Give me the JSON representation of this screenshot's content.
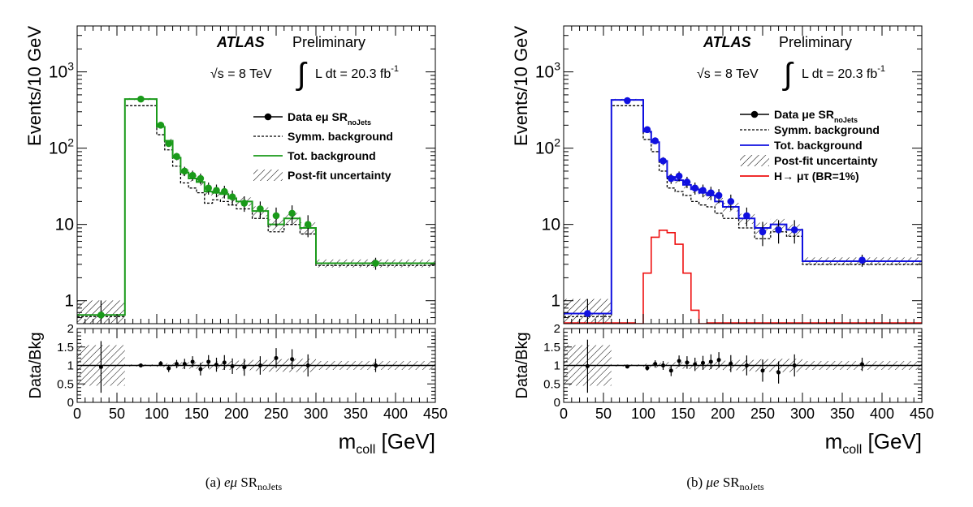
{
  "chart_data": [
    {
      "type": "histogram",
      "panel_caption": {
        "letter": "(a)",
        "channel": "eμ",
        "sr": "SR",
        "sub": "noJets"
      },
      "atlas_label": "ATLAS",
      "preliminary": "Preliminary",
      "energy": {
        "sqrt": "√s = 8 TeV"
      },
      "lumi": {
        "integral": "∫",
        "text": "L dt = 20.3 fb",
        "exp": "-1"
      },
      "upper": {
        "ylabel": "Events/10 GeV",
        "yscale": "log",
        "ylim": [
          0.5,
          4000
        ],
        "yticks": [
          {
            "label": "1",
            "value": 1
          },
          {
            "label": "10",
            "value": 10
          },
          {
            "label": "10",
            "sup": "2",
            "value": 100
          },
          {
            "label": "10",
            "sup": "3",
            "value": 1000
          }
        ]
      },
      "ratio": {
        "ylabel": "Data/Bkg",
        "ylim": [
          0,
          2
        ],
        "yticks": [
          "0",
          "0.5",
          "1",
          "1.5",
          "2"
        ]
      },
      "xaxis": {
        "label": "m",
        "sub": "coll",
        "unit": "[GeV]",
        "xlim": [
          0,
          450
        ],
        "ticks": [
          "0",
          "50",
          "100",
          "150",
          "200",
          "250",
          "300",
          "350",
          "400",
          "450"
        ]
      },
      "legend": [
        {
          "kind": "data",
          "label": "Data eμ SR",
          "sub": "noJets"
        },
        {
          "kind": "symm",
          "label": "Symm. background"
        },
        {
          "kind": "tot",
          "label": "Tot. background"
        },
        {
          "kind": "unc",
          "label": "Post-fit uncertainty"
        }
      ],
      "colors": {
        "total": "#1a9a1a",
        "data": "#1a9a1a",
        "symm": "#000000",
        "signal": "#ee1111"
      },
      "bins": [
        0,
        60,
        100,
        110,
        120,
        130,
        140,
        150,
        160,
        170,
        180,
        190,
        200,
        220,
        240,
        260,
        280,
        300,
        450
      ],
      "total_bkg": [
        0.65,
        440,
        190,
        125,
        75,
        48,
        40,
        36,
        27,
        26,
        25,
        22,
        20,
        15,
        10,
        12,
        9,
        3.1
      ],
      "symm_bkg": [
        0.62,
        360,
        150,
        95,
        58,
        35,
        30,
        26,
        19,
        21,
        20,
        18,
        16,
        12,
        8,
        10,
        7.5,
        2.9
      ],
      "unc_rel": [
        0.55,
        0.03,
        0.05,
        0.06,
        0.07,
        0.09,
        0.09,
        0.1,
        0.11,
        0.11,
        0.12,
        0.12,
        0.13,
        0.15,
        0.17,
        0.18,
        0.18,
        0.12
      ],
      "data": {
        "x": [
          30,
          80,
          105,
          115,
          125,
          135,
          145,
          155,
          165,
          175,
          185,
          195,
          210,
          230,
          250,
          270,
          290,
          375
        ],
        "y": [
          0.65,
          440,
          200,
          115,
          78,
          50,
          44,
          40,
          30,
          28,
          27,
          23,
          19,
          16,
          13,
          14,
          10,
          3.1
        ],
        "err": [
          0.55,
          0.05,
          0.07,
          0.09,
          0.11,
          0.14,
          0.15,
          0.16,
          0.18,
          0.19,
          0.19,
          0.21,
          0.23,
          0.25,
          0.28,
          0.27,
          0.32,
          0.18
        ]
      },
      "ratio_points": {
        "x": [
          30,
          80,
          105,
          115,
          125,
          135,
          145,
          155,
          165,
          175,
          185,
          195,
          210,
          230,
          250,
          270,
          290,
          375
        ],
        "y": [
          0.96,
          1.0,
          1.05,
          0.92,
          1.04,
          1.04,
          1.1,
          0.9,
          1.1,
          1.02,
          1.08,
          0.98,
          0.95,
          1.0,
          1.2,
          1.17,
          1.0,
          1.0
        ],
        "err": [
          0.7,
          0.04,
          0.07,
          0.1,
          0.11,
          0.14,
          0.15,
          0.17,
          0.18,
          0.19,
          0.2,
          0.21,
          0.23,
          0.25,
          0.27,
          0.27,
          0.3,
          0.18
        ]
      }
    },
    {
      "type": "histogram",
      "panel_caption": {
        "letter": "(b)",
        "channel": "μe",
        "sr": "SR",
        "sub": "noJets"
      },
      "atlas_label": "ATLAS",
      "preliminary": "Preliminary",
      "energy": {
        "sqrt": "√s = 8 TeV"
      },
      "lumi": {
        "integral": "∫",
        "text": "L dt = 20.3 fb",
        "exp": "-1"
      },
      "upper": {
        "ylabel": "Events/10 GeV",
        "yscale": "log",
        "ylim": [
          0.5,
          4000
        ],
        "yticks": [
          {
            "label": "1",
            "value": 1
          },
          {
            "label": "10",
            "value": 10
          },
          {
            "label": "10",
            "sup": "2",
            "value": 100
          },
          {
            "label": "10",
            "sup": "3",
            "value": 1000
          }
        ]
      },
      "ratio": {
        "ylabel": "Data/Bkg",
        "ylim": [
          0,
          2
        ],
        "yticks": [
          "0",
          "0.5",
          "1",
          "1.5",
          "2"
        ]
      },
      "xaxis": {
        "label": "m",
        "sub": "coll",
        "unit": "[GeV]",
        "xlim": [
          0,
          450
        ],
        "ticks": [
          "0",
          "50",
          "100",
          "150",
          "200",
          "250",
          "300",
          "350",
          "400",
          "450"
        ]
      },
      "legend": [
        {
          "kind": "data",
          "label": "Data  μe SR",
          "sub": "noJets"
        },
        {
          "kind": "symm",
          "label": "Symm. background"
        },
        {
          "kind": "tot",
          "label": "Tot. background"
        },
        {
          "kind": "unc",
          "label": "Post-fit uncertainty"
        },
        {
          "kind": "sig",
          "label": "H→ μτ (BR=1%)"
        }
      ],
      "colors": {
        "total": "#1010e0",
        "data": "#1010e0",
        "symm": "#000000",
        "signal": "#ee1111"
      },
      "bins": [
        0,
        60,
        100,
        110,
        120,
        130,
        140,
        150,
        160,
        170,
        180,
        190,
        200,
        220,
        240,
        260,
        280,
        300,
        450
      ],
      "total_bkg": [
        0.68,
        430,
        165,
        120,
        68,
        42,
        38,
        33,
        29,
        26,
        24,
        20,
        17,
        12,
        9,
        10,
        8.5,
        3.3
      ],
      "symm_bkg": [
        0.62,
        360,
        130,
        90,
        50,
        30,
        27,
        24,
        20,
        18,
        17,
        14,
        12,
        9,
        6.5,
        8,
        7,
        3.0
      ],
      "unc_rel": [
        0.55,
        0.03,
        0.05,
        0.06,
        0.07,
        0.09,
        0.09,
        0.1,
        0.11,
        0.11,
        0.12,
        0.12,
        0.13,
        0.15,
        0.17,
        0.18,
        0.18,
        0.12
      ],
      "signal": {
        "bins": [
          90,
          100,
          110,
          120,
          130,
          140,
          150,
          160,
          170,
          180
        ],
        "values": [
          0.45,
          2.3,
          6.8,
          8.4,
          7.8,
          5.5,
          2.3,
          0.75,
          0.45
        ]
      },
      "data": {
        "x": [
          30,
          80,
          105,
          115,
          125,
          135,
          145,
          155,
          165,
          175,
          185,
          195,
          210,
          230,
          250,
          270,
          290,
          375
        ],
        "y": [
          0.68,
          420,
          175,
          125,
          68,
          40,
          43,
          36,
          30,
          28,
          26,
          24,
          20,
          13,
          8,
          8.5,
          8.5,
          3.4
        ],
        "err": [
          0.55,
          0.05,
          0.07,
          0.09,
          0.12,
          0.15,
          0.15,
          0.17,
          0.18,
          0.19,
          0.2,
          0.21,
          0.23,
          0.28,
          0.35,
          0.34,
          0.34,
          0.18
        ]
      },
      "ratio_points": {
        "x": [
          30,
          80,
          105,
          115,
          125,
          135,
          145,
          155,
          165,
          175,
          185,
          195,
          210,
          230,
          250,
          270,
          290,
          375
        ],
        "y": [
          0.98,
          0.97,
          0.93,
          1.04,
          1.0,
          0.86,
          1.12,
          1.08,
          1.03,
          1.07,
          1.1,
          1.15,
          1.05,
          1.0,
          0.86,
          0.81,
          1.0,
          1.03
        ],
        "err": [
          0.72,
          0.04,
          0.07,
          0.1,
          0.12,
          0.15,
          0.15,
          0.17,
          0.18,
          0.19,
          0.2,
          0.21,
          0.23,
          0.27,
          0.3,
          0.3,
          0.3,
          0.18
        ]
      }
    }
  ]
}
